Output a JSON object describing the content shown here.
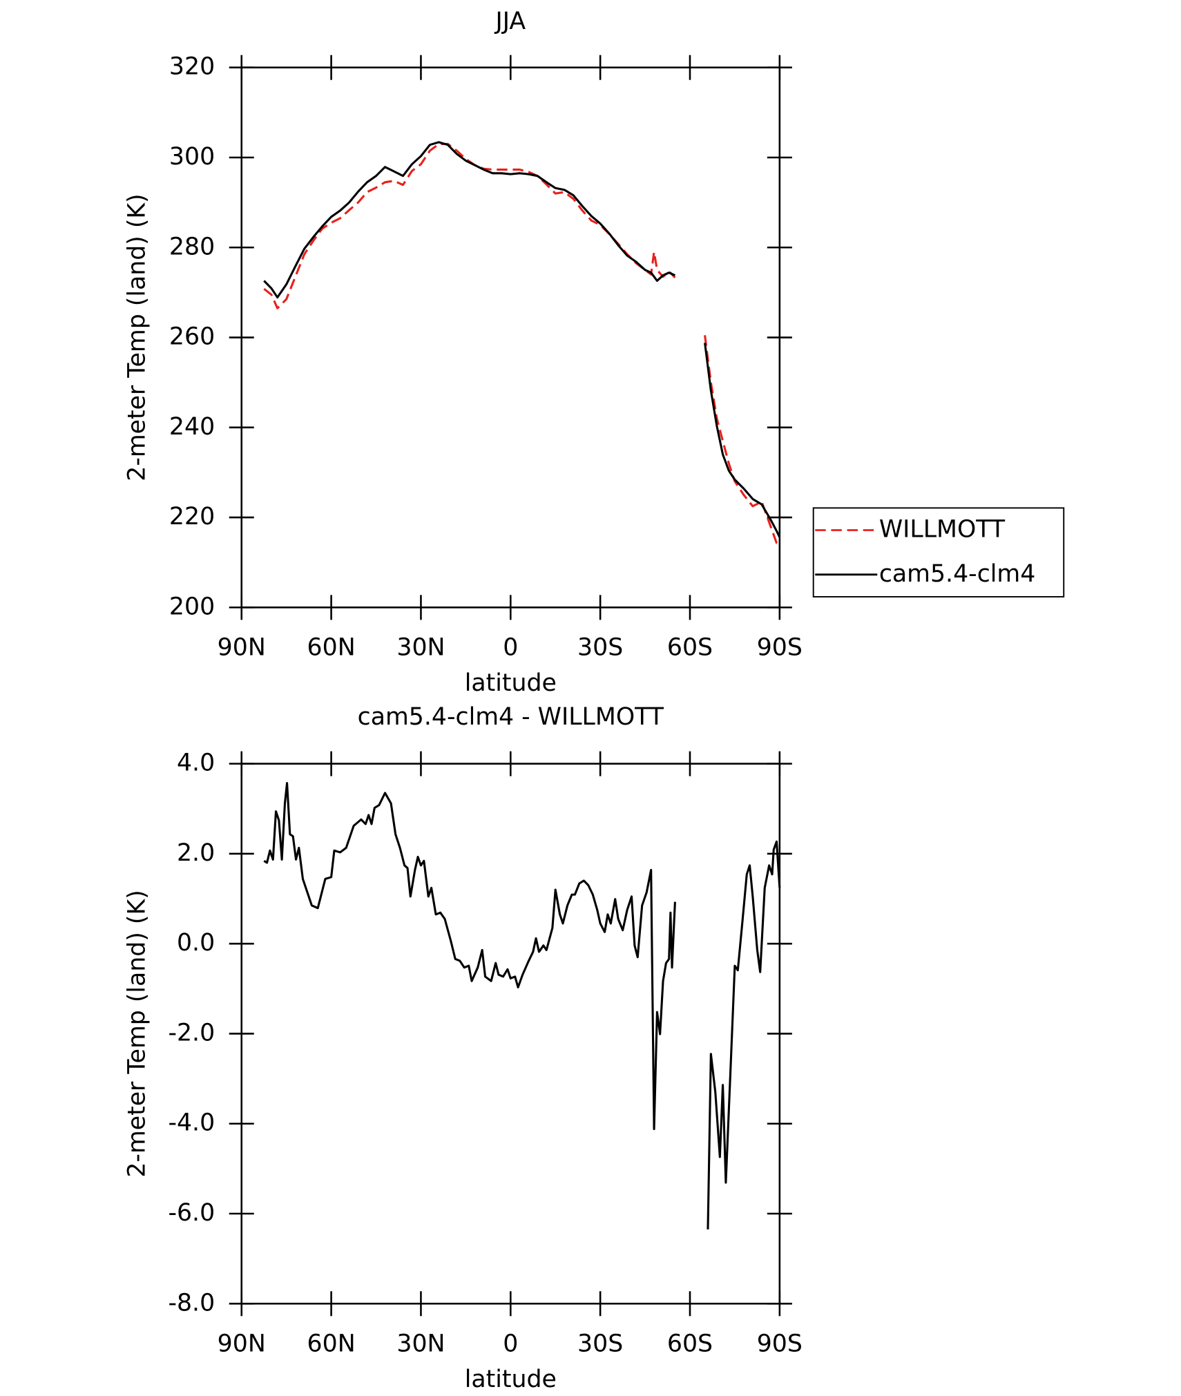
{
  "chart_data": [
    {
      "type": "line",
      "title": "JJA",
      "x_label": "latitude",
      "y_label": "2-meter Temp (land) (K)",
      "xlim": [
        90,
        -90
      ],
      "xticks": [
        {
          "value": 90,
          "label": "90N"
        },
        {
          "value": 60,
          "label": "60N"
        },
        {
          "value": 30,
          "label": "30N"
        },
        0,
        {
          "value": -30,
          "label": "30S"
        },
        {
          "value": -60,
          "label": "60S"
        },
        {
          "value": -90,
          "label": "90S"
        }
      ],
      "ylim": [
        200,
        320
      ],
      "yticks": [
        200,
        220,
        240,
        260,
        280,
        300,
        320
      ],
      "legend": "right",
      "x": [
        82.5,
        80,
        78,
        75,
        72,
        69,
        66,
        63,
        60,
        57,
        54,
        51,
        48,
        45,
        42,
        39,
        36,
        33,
        30,
        27,
        24,
        21,
        18,
        15,
        12,
        9,
        6,
        3,
        0,
        -3,
        -6,
        -9,
        -12,
        -15,
        -18,
        -21,
        -24,
        -27,
        -30,
        -33,
        -36,
        -39,
        -42,
        -45,
        -47,
        -48,
        -49,
        -51,
        -53,
        -55,
        -60,
        -65,
        -67,
        -69,
        -71,
        -73,
        -75,
        -78,
        -81,
        -84,
        -87,
        -89,
        -90
      ],
      "series": [
        {
          "name": "WILLMOTT",
          "color": "#e8201c",
          "dashed": true,
          "values": [
            270.8,
            269.5,
            266.5,
            268.5,
            273.5,
            278.5,
            281.5,
            284.2,
            285.5,
            286.5,
            288.3,
            290,
            292.3,
            293.3,
            294.5,
            294.8,
            293.9,
            297,
            298.5,
            301.5,
            303,
            303,
            301.5,
            299.7,
            298.3,
            297.5,
            297.3,
            297.3,
            297.3,
            297.3,
            296.8,
            295.9,
            294,
            292,
            292.3,
            290.8,
            288.2,
            286,
            285,
            283,
            280.8,
            278.5,
            276.5,
            275,
            274,
            279,
            275,
            273.5,
            274.7,
            273.3,
            null,
            260.5,
            250,
            242,
            237,
            232,
            228,
            225,
            222.5,
            223.5,
            218,
            214.3,
            214.3
          ]
        },
        {
          "name": "cam5.4-clm4",
          "color": "#000000",
          "dashed": false,
          "values": [
            272.6,
            270.9,
            268.9,
            271.8,
            275.8,
            279.7,
            282.3,
            284.7,
            286.8,
            288.2,
            290,
            292.4,
            294.5,
            295.9,
            297.9,
            296.9,
            295.9,
            298.5,
            300.3,
            302.8,
            303.4,
            302.8,
            300.8,
            299.3,
            298.3,
            297.3,
            296.5,
            296.5,
            296.3,
            296.5,
            296.3,
            295.9,
            294.5,
            293.2,
            292.8,
            291.6,
            289.2,
            287,
            285.3,
            283.1,
            280.5,
            278.2,
            276.8,
            275,
            274.4,
            273.5,
            272.6,
            273.8,
            274.4,
            273.8,
            null,
            258.8,
            248.2,
            240.3,
            234,
            230.4,
            228.4,
            226.4,
            224.1,
            222.9,
            219.5,
            217,
            215.6
          ]
        }
      ]
    },
    {
      "type": "line",
      "title": "cam5.4-clm4 - WILLMOTT",
      "x_label": "latitude",
      "y_label": "2-meter Temp (land) (K)",
      "xlim": [
        90,
        -90
      ],
      "xticks": [
        {
          "value": 90,
          "label": "90N"
        },
        {
          "value": 60,
          "label": "60N"
        },
        {
          "value": 30,
          "label": "30N"
        },
        0,
        {
          "value": -30,
          "label": "30S"
        },
        {
          "value": -60,
          "label": "60S"
        },
        {
          "value": -90,
          "label": "90S"
        }
      ],
      "ylim": [
        -8,
        4
      ],
      "yticks": [
        {
          "value": -8,
          "label": "-8.0"
        },
        {
          "value": -6,
          "label": "-6.0"
        },
        {
          "value": -4,
          "label": "-4.0"
        },
        {
          "value": -2,
          "label": "-2.0"
        },
        {
          "value": 0,
          "label": "0.0"
        },
        {
          "value": 2,
          "label": "2.0"
        },
        {
          "value": 4,
          "label": "4.0"
        }
      ],
      "x": [
        82.5,
        81.5,
        80.5,
        79.5,
        78.5,
        77.5,
        76.5,
        75.5,
        74.8,
        73.8,
        72.8,
        71.8,
        70.8,
        69.5,
        68,
        66.5,
        64.5,
        62,
        60,
        59,
        57,
        55,
        52.5,
        50,
        48.5,
        47.5,
        46.5,
        45.5,
        44,
        42,
        40,
        38.5,
        37,
        35.5,
        34.5,
        33.5,
        32,
        31,
        30,
        29,
        27.5,
        26.5,
        25,
        23.5,
        22,
        20,
        18.5,
        17,
        15.5,
        14,
        13,
        11,
        9.5,
        8.5,
        6.5,
        5,
        4,
        2.5,
        1,
        0,
        -1.5,
        -2.5,
        -4,
        -6,
        -7.5,
        -8.5,
        -9.5,
        -11,
        -12,
        -14,
        -15,
        -16.5,
        -17.5,
        -19,
        -20.5,
        -21.5,
        -23,
        -24.5,
        -26,
        -27.5,
        -29,
        -30,
        -31.5,
        -32.5,
        -33.5,
        -35,
        -36,
        -37.5,
        -39,
        -40.5,
        -41.5,
        -42.5,
        -44,
        -45.5,
        -47,
        -48,
        -49,
        -50,
        -51,
        -52,
        -53,
        -53.5,
        -54,
        -55,
        -60,
        -66,
        -67,
        -68.5,
        -70,
        -71,
        -72,
        -73.5,
        -75,
        -76,
        -77.5,
        -79,
        -80,
        -81,
        -82.5,
        -83.5,
        -85,
        -86.5,
        -87.5,
        -88,
        -89,
        -90
      ],
      "series": [
        {
          "color": "#000000",
          "dashed": false,
          "values": [
            1.84,
            1.8,
            2.07,
            1.87,
            2.94,
            2.74,
            1.87,
            3.12,
            3.57,
            2.43,
            2.39,
            1.87,
            2.13,
            1.44,
            1.14,
            0.85,
            0.79,
            1.44,
            1.48,
            2.07,
            2.03,
            2.13,
            2.62,
            2.76,
            2.66,
            2.86,
            2.66,
            3.02,
            3.08,
            3.35,
            3.12,
            2.43,
            2.13,
            1.74,
            1.68,
            1.05,
            1.64,
            1.93,
            1.74,
            1.84,
            1.05,
            1.24,
            0.65,
            0.69,
            0.55,
            0.06,
            -0.34,
            -0.38,
            -0.53,
            -0.49,
            -0.83,
            -0.53,
            -0.14,
            -0.73,
            -0.83,
            -0.43,
            -0.69,
            -0.73,
            -0.57,
            -0.77,
            -0.73,
            -0.97,
            -0.69,
            -0.39,
            -0.18,
            0.12,
            -0.18,
            -0.04,
            -0.14,
            0.35,
            1.2,
            0.65,
            0.45,
            0.85,
            1.09,
            1.09,
            1.34,
            1.4,
            1.3,
            1.09,
            0.75,
            0.45,
            0.26,
            0.65,
            0.45,
            0.99,
            0.55,
            0.3,
            0.75,
            1.05,
            -0.04,
            -0.3,
            0.85,
            1.14,
            1.64,
            -4.12,
            -1.52,
            -2.01,
            -0.83,
            -0.43,
            -0.34,
            0.69,
            -0.53,
            0.93,
            null,
            -6.35,
            -2.45,
            -3.3,
            -4.74,
            -3.14,
            -5.31,
            -2.9,
            -0.49,
            -0.59,
            0.45,
            1.54,
            1.74,
            1.05,
            -0.14,
            -0.63,
            1.24,
            1.74,
            1.54,
            2.09,
            2.27,
            1.24
          ]
        }
      ]
    }
  ]
}
